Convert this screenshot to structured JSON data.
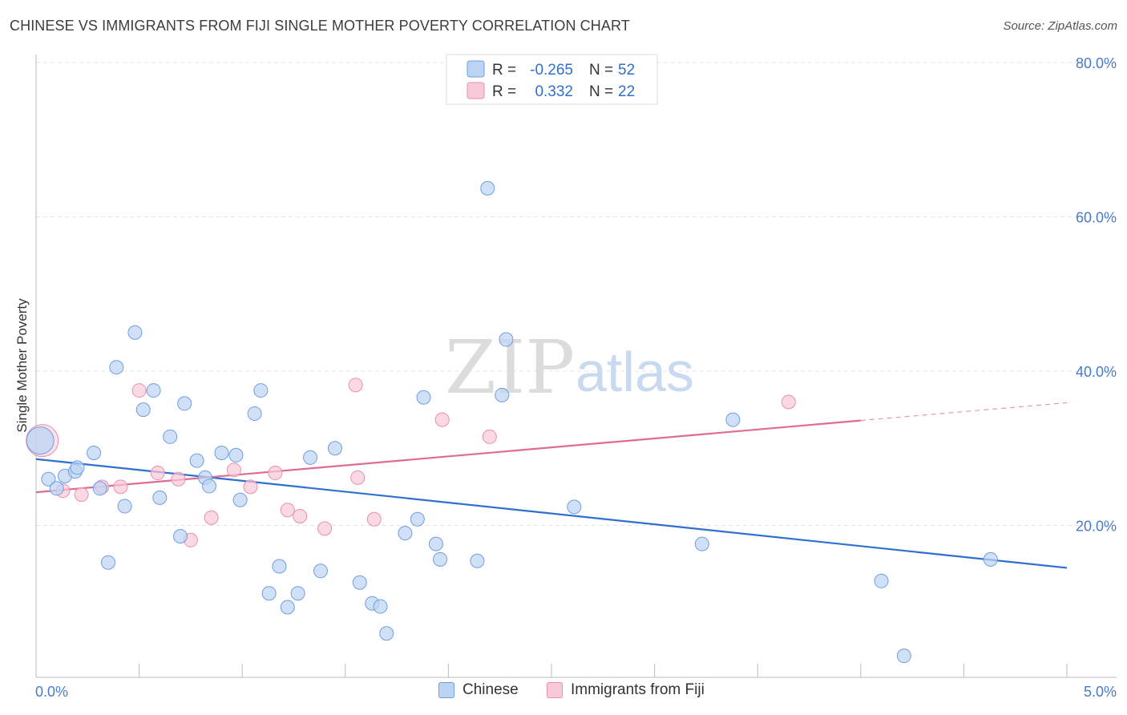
{
  "header": {
    "title": "CHINESE VS IMMIGRANTS FROM FIJI SINGLE MOTHER POVERTY CORRELATION CHART",
    "source": "Source: ZipAtlas.com"
  },
  "watermark": {
    "zip": "ZIP",
    "atlas": "atlas"
  },
  "colors": {
    "chinese_fill": "#bcd4f4",
    "chinese_stroke": "#6f9ee0",
    "chinese_line": "#2f6fd0",
    "fiji_fill": "#f8c9d6",
    "fiji_stroke": "#ea8fae",
    "fiji_line": "#e06b95",
    "axis_text": "#4a7bc8"
  },
  "legend": {
    "rows": [
      {
        "r_label": "R =",
        "r_value": "-0.265",
        "n_label": "N =",
        "n_value": "52"
      },
      {
        "r_label": "R =",
        "r_value": "0.332",
        "n_label": "N =",
        "n_value": "22"
      }
    ]
  },
  "bottom_legend": {
    "chinese": "Chinese",
    "fiji": "Immigrants from Fiji"
  },
  "chart_data": {
    "type": "scatter",
    "title": "CHINESE VS IMMIGRANTS FROM FIJI SINGLE MOTHER POVERTY CORRELATION CHART",
    "xlabel": "",
    "ylabel": "Single Mother Poverty",
    "xlim": [
      0,
      5
    ],
    "ylim": [
      0,
      80
    ],
    "x_tick_labels": [
      "0.0%",
      "5.0%"
    ],
    "y_tick_labels": [
      "80.0%",
      "60.0%",
      "40.0%",
      "20.0%"
    ],
    "y_ticks": [
      80,
      60,
      40,
      20
    ],
    "series": [
      {
        "name": "Chinese",
        "R": -0.265,
        "N": 52,
        "trend": {
          "x": [
            0,
            5
          ],
          "y": [
            28.6,
            14.5
          ]
        },
        "points": [
          [
            0.02,
            31.0
          ],
          [
            0.06,
            26.0
          ],
          [
            0.1,
            24.8
          ],
          [
            0.14,
            26.4
          ],
          [
            0.19,
            27.0
          ],
          [
            0.2,
            27.5
          ],
          [
            0.28,
            29.4
          ],
          [
            0.31,
            24.8
          ],
          [
            0.35,
            15.2
          ],
          [
            0.39,
            40.5
          ],
          [
            0.43,
            22.5
          ],
          [
            0.48,
            45.0
          ],
          [
            0.52,
            35.0
          ],
          [
            0.57,
            37.5
          ],
          [
            0.6,
            23.6
          ],
          [
            0.65,
            31.5
          ],
          [
            0.7,
            18.6
          ],
          [
            0.72,
            35.8
          ],
          [
            0.78,
            28.4
          ],
          [
            0.82,
            26.2
          ],
          [
            0.84,
            25.1
          ],
          [
            0.9,
            29.4
          ],
          [
            0.97,
            29.1
          ],
          [
            0.99,
            23.3
          ],
          [
            1.06,
            34.5
          ],
          [
            1.09,
            37.5
          ],
          [
            1.13,
            11.2
          ],
          [
            1.18,
            14.7
          ],
          [
            1.22,
            9.4
          ],
          [
            1.27,
            11.2
          ],
          [
            1.33,
            28.8
          ],
          [
            1.38,
            14.1
          ],
          [
            1.45,
            30.0
          ],
          [
            1.57,
            12.6
          ],
          [
            1.63,
            9.9
          ],
          [
            1.67,
            9.5
          ],
          [
            1.7,
            6.0
          ],
          [
            1.79,
            19.0
          ],
          [
            1.85,
            20.8
          ],
          [
            1.88,
            36.6
          ],
          [
            1.94,
            17.6
          ],
          [
            1.96,
            15.6
          ],
          [
            2.14,
            15.4
          ],
          [
            2.19,
            63.7
          ],
          [
            2.26,
            36.9
          ],
          [
            2.28,
            44.1
          ],
          [
            2.61,
            22.4
          ],
          [
            3.23,
            17.6
          ],
          [
            3.38,
            33.7
          ],
          [
            4.1,
            12.8
          ],
          [
            4.21,
            3.1
          ],
          [
            4.63,
            15.6
          ]
        ]
      },
      {
        "name": "Immigrants from Fiji",
        "R": 0.332,
        "N": 22,
        "trend": {
          "x": [
            0,
            4
          ],
          "y": [
            24.3,
            33.6
          ],
          "dashed_to": {
            "x": 5,
            "y": 35.9
          }
        },
        "points": [
          [
            0.03,
            31.0
          ],
          [
            0.13,
            24.5
          ],
          [
            0.22,
            24.0
          ],
          [
            0.32,
            25.0
          ],
          [
            0.41,
            25.0
          ],
          [
            0.5,
            37.5
          ],
          [
            0.59,
            26.8
          ],
          [
            0.69,
            26.0
          ],
          [
            0.75,
            18.1
          ],
          [
            0.85,
            21.0
          ],
          [
            0.96,
            27.2
          ],
          [
            1.04,
            25.0
          ],
          [
            1.16,
            26.8
          ],
          [
            1.22,
            22.0
          ],
          [
            1.28,
            21.2
          ],
          [
            1.4,
            19.6
          ],
          [
            1.55,
            38.2
          ],
          [
            1.56,
            26.2
          ],
          [
            1.64,
            20.8
          ],
          [
            1.97,
            33.7
          ],
          [
            2.2,
            31.5
          ],
          [
            3.65,
            36.0
          ]
        ]
      }
    ]
  }
}
